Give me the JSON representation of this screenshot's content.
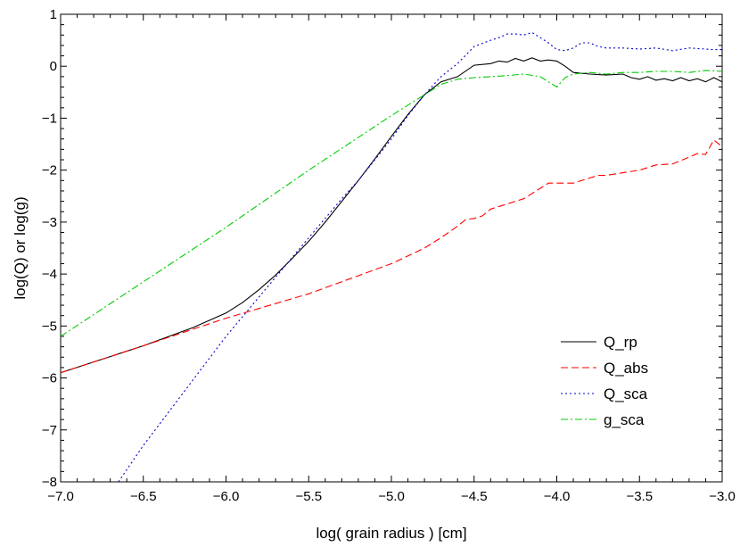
{
  "chart_data": {
    "type": "line",
    "title": "",
    "xlabel": "log( grain radius ) [cm]",
    "ylabel": "log(Q)  or  log(g)",
    "xlim": [
      -7.0,
      -3.0
    ],
    "ylim": [
      -8,
      1
    ],
    "xticks": [
      -7.0,
      -6.5,
      -6.0,
      -5.5,
      -5.0,
      -4.5,
      -4.0,
      -3.5,
      -3.0
    ],
    "xtick_labels": [
      "−7.0",
      "−6.5",
      "−6.0",
      "−5.5",
      "−5.0",
      "−4.5",
      "−4.0",
      "−3.5",
      "−3.0"
    ],
    "yticks": [
      -8,
      -7,
      -6,
      -5,
      -4,
      -3,
      -2,
      -1,
      0,
      1
    ],
    "ytick_labels": [
      "−8",
      "−7",
      "−6",
      "−5",
      "−4",
      "−3",
      "−2",
      "−1",
      "0",
      "1"
    ],
    "grid": false,
    "legend_position": "lower-right",
    "series": [
      {
        "name": "Q_rp",
        "color": "#000000",
        "dash": "solid",
        "x": [
          -7.0,
          -6.5,
          -6.2,
          -6.0,
          -5.9,
          -5.8,
          -5.7,
          -5.6,
          -5.5,
          -5.4,
          -5.3,
          -5.2,
          -5.1,
          -5.0,
          -4.9,
          -4.8,
          -4.7,
          -4.6,
          -4.5,
          -4.4,
          -4.35,
          -4.3,
          -4.25,
          -4.2,
          -4.15,
          -4.1,
          -4.05,
          -4.0,
          -3.95,
          -3.9,
          -3.8,
          -3.7,
          -3.6,
          -3.55,
          -3.5,
          -3.45,
          -3.4,
          -3.35,
          -3.3,
          -3.25,
          -3.2,
          -3.15,
          -3.1,
          -3.05,
          -3.0
        ],
        "y": [
          -5.9,
          -5.38,
          -5.03,
          -4.75,
          -4.55,
          -4.3,
          -4.02,
          -3.7,
          -3.37,
          -3.0,
          -2.6,
          -2.2,
          -1.78,
          -1.35,
          -0.93,
          -0.55,
          -0.3,
          -0.2,
          0.02,
          0.05,
          0.1,
          0.08,
          0.15,
          0.1,
          0.16,
          0.1,
          0.12,
          0.1,
          0.0,
          -0.12,
          -0.15,
          -0.17,
          -0.15,
          -0.22,
          -0.25,
          -0.2,
          -0.27,
          -0.24,
          -0.28,
          -0.22,
          -0.28,
          -0.24,
          -0.3,
          -0.22,
          -0.3
        ]
      },
      {
        "name": "Q_abs",
        "color": "#ff0000",
        "dash": "dashed",
        "x": [
          -7.0,
          -6.5,
          -6.0,
          -5.5,
          -5.0,
          -4.8,
          -4.7,
          -4.6,
          -4.55,
          -4.5,
          -4.45,
          -4.4,
          -4.3,
          -4.2,
          -4.1,
          -4.05,
          -4.0,
          -3.9,
          -3.8,
          -3.75,
          -3.7,
          -3.6,
          -3.5,
          -3.45,
          -3.4,
          -3.3,
          -3.2,
          -3.15,
          -3.1,
          -3.05,
          -3.0
        ],
        "y": [
          -5.9,
          -5.38,
          -4.85,
          -4.38,
          -3.8,
          -3.5,
          -3.3,
          -3.08,
          -2.95,
          -2.93,
          -2.88,
          -2.75,
          -2.65,
          -2.55,
          -2.35,
          -2.25,
          -2.25,
          -2.25,
          -2.15,
          -2.1,
          -2.1,
          -2.05,
          -2.0,
          -1.95,
          -1.9,
          -1.88,
          -1.75,
          -1.68,
          -1.7,
          -1.42,
          -1.55
        ]
      },
      {
        "name": "Q_sca",
        "color": "#0000cc",
        "dash": "dotted",
        "x": [
          -6.65,
          -6.5,
          -6.0,
          -5.5,
          -5.3,
          -5.2,
          -5.1,
          -5.0,
          -4.9,
          -4.8,
          -4.7,
          -4.6,
          -4.5,
          -4.4,
          -4.35,
          -4.3,
          -4.25,
          -4.2,
          -4.15,
          -4.1,
          -4.05,
          -4.0,
          -3.95,
          -3.9,
          -3.85,
          -3.8,
          -3.75,
          -3.7,
          -3.6,
          -3.5,
          -3.4,
          -3.3,
          -3.2,
          -3.1,
          -3.05,
          -3.0
        ],
        "y": [
          -8.0,
          -7.3,
          -5.2,
          -3.3,
          -2.55,
          -2.2,
          -1.8,
          -1.4,
          -0.95,
          -0.55,
          -0.2,
          0.05,
          0.38,
          0.5,
          0.55,
          0.62,
          0.62,
          0.6,
          0.65,
          0.55,
          0.45,
          0.32,
          0.3,
          0.35,
          0.45,
          0.45,
          0.38,
          0.35,
          0.35,
          0.33,
          0.35,
          0.3,
          0.35,
          0.33,
          0.32,
          0.32
        ]
      },
      {
        "name": "g_sca",
        "color": "#00cc00",
        "dash": "dashdot",
        "x": [
          -7.0,
          -6.5,
          -6.0,
          -5.5,
          -5.0,
          -4.8,
          -4.7,
          -4.6,
          -4.5,
          -4.4,
          -4.3,
          -4.2,
          -4.1,
          -4.05,
          -4.0,
          -3.95,
          -3.9,
          -3.8,
          -3.7,
          -3.6,
          -3.5,
          -3.4,
          -3.3,
          -3.2,
          -3.1,
          -3.0
        ],
        "y": [
          -5.2,
          -4.15,
          -3.1,
          -2.0,
          -0.95,
          -0.55,
          -0.35,
          -0.25,
          -0.22,
          -0.2,
          -0.18,
          -0.15,
          -0.2,
          -0.3,
          -0.4,
          -0.22,
          -0.15,
          -0.12,
          -0.15,
          -0.12,
          -0.12,
          -0.1,
          -0.1,
          -0.12,
          -0.08,
          -0.1
        ]
      }
    ]
  }
}
